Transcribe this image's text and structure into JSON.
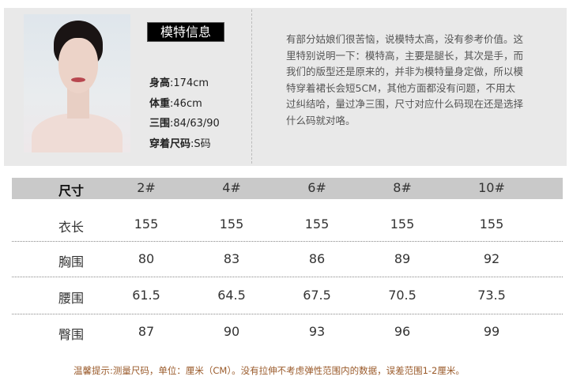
{
  "model": {
    "title": "模特信息",
    "stats": [
      {
        "label": "身高",
        "value": ":174cm"
      },
      {
        "label": "体重",
        "value": ":46cm"
      },
      {
        "label": "三围",
        "value": ":84/63/90"
      },
      {
        "label": "穿着尺码",
        "value": ":S码"
      }
    ],
    "description": "有部分姑娘们很苦恼，说模特太高，没有参考价值。这里特别说明一下：模特高，主要是腿长，其次是手，而我们的版型还是原来的，并非为模特量身定做，所以模特穿着裙长会短5CM，其他方面都没有问题，不用太过纠结哈，量过净三围，尺寸对应什么码现在还是选择什么码就对咯。"
  },
  "table": {
    "header": [
      "尺寸",
      "2#",
      "4#",
      "6#",
      "8#",
      "10#"
    ],
    "rows": [
      [
        "衣长",
        "155",
        "155",
        "155",
        "155",
        "155"
      ],
      [
        "胸围",
        "80",
        "83",
        "86",
        "89",
        "92"
      ],
      [
        "腰围",
        "61.5",
        "64.5",
        "67.5",
        "70.5",
        "73.5"
      ],
      [
        "臀围",
        "87",
        "90",
        "93",
        "96",
        "99"
      ]
    ]
  },
  "note": "温馨提示:测量尺码，单位：厘米（CM）。没有拉伸不考虑弹性范围内的数据，误差范围1-2厘米。"
}
